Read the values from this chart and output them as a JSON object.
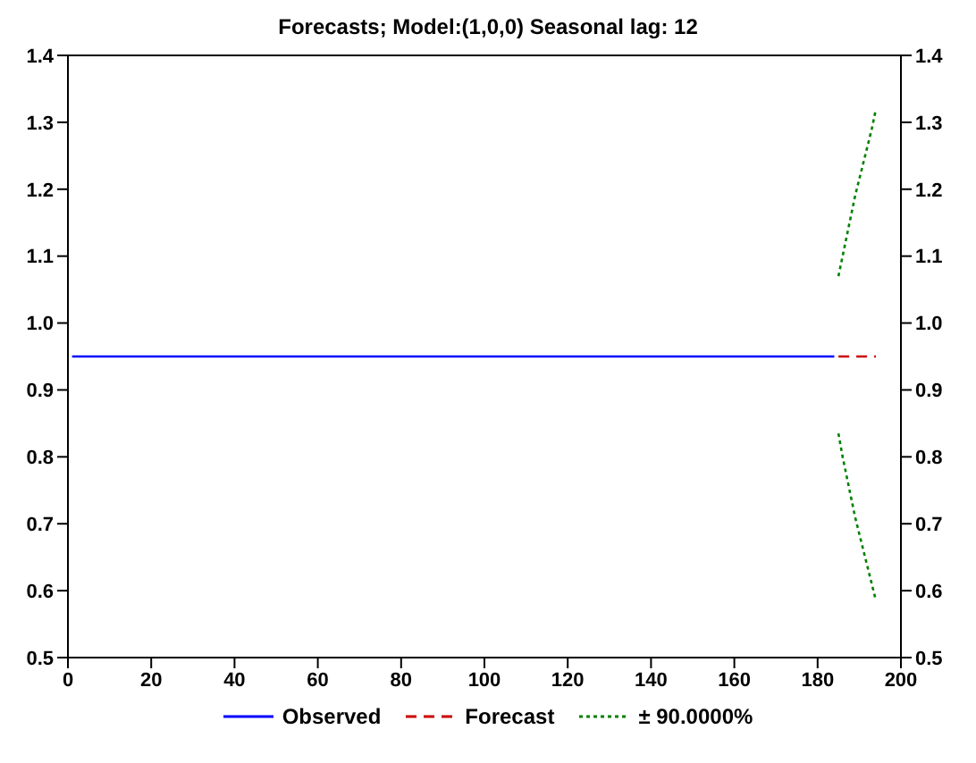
{
  "chart_data": {
    "type": "line",
    "title": "Forecasts; Model:(1,0,0) Seasonal lag: 12",
    "xlim": [
      0,
      200
    ],
    "xticks": [
      0,
      20,
      40,
      60,
      80,
      100,
      120,
      140,
      160,
      180,
      200
    ],
    "ylim": [
      0.5,
      1.4
    ],
    "yticks": [
      0.5,
      0.6,
      0.7,
      0.8,
      0.9,
      {
        "value": 1,
        "label": "1.0"
      },
      1.1,
      1.2,
      1.3,
      1.4
    ],
    "y2lim": [
      0.5,
      1.4
    ],
    "y2ticks": [
      0.5,
      0.6,
      0.7,
      0.8,
      0.9,
      {
        "value": 1,
        "label": "1.0"
      },
      1.1,
      1.2,
      1.3,
      1.4
    ],
    "grid": false,
    "legend": "bottom",
    "marker": "none",
    "series": [
      {
        "name": "Observed",
        "color": "#0000ff",
        "line_style": "solid",
        "x": [
          1,
          20,
          40,
          60,
          80,
          100,
          120,
          140,
          160,
          184
        ],
        "values": [
          0.95,
          0.95,
          0.95,
          0.95,
          0.95,
          0.95,
          0.95,
          0.95,
          0.95,
          0.95
        ]
      },
      {
        "name": "Forecast",
        "color": "#cc0000",
        "line_style": "dashed",
        "x": [
          185,
          194
        ],
        "values": [
          0.95,
          0.95
        ]
      },
      {
        "name": "± 90.0000%",
        "color": "#008000",
        "line_style": "dotted",
        "x": [
          185,
          186,
          187,
          188,
          189,
          190,
          191,
          192,
          193,
          194
        ],
        "values": [
          1.07,
          1.1,
          1.13,
          1.16,
          1.19,
          1.215,
          1.24,
          1.265,
          1.29,
          1.32
        ]
      },
      {
        "color": "#008000",
        "line_style": "dotted",
        "x": [
          185,
          186,
          187,
          188,
          189,
          190,
          191,
          192,
          193,
          194
        ],
        "values": [
          0.835,
          0.8,
          0.77,
          0.74,
          0.71,
          0.685,
          0.66,
          0.635,
          0.61,
          0.585
        ]
      }
    ]
  }
}
